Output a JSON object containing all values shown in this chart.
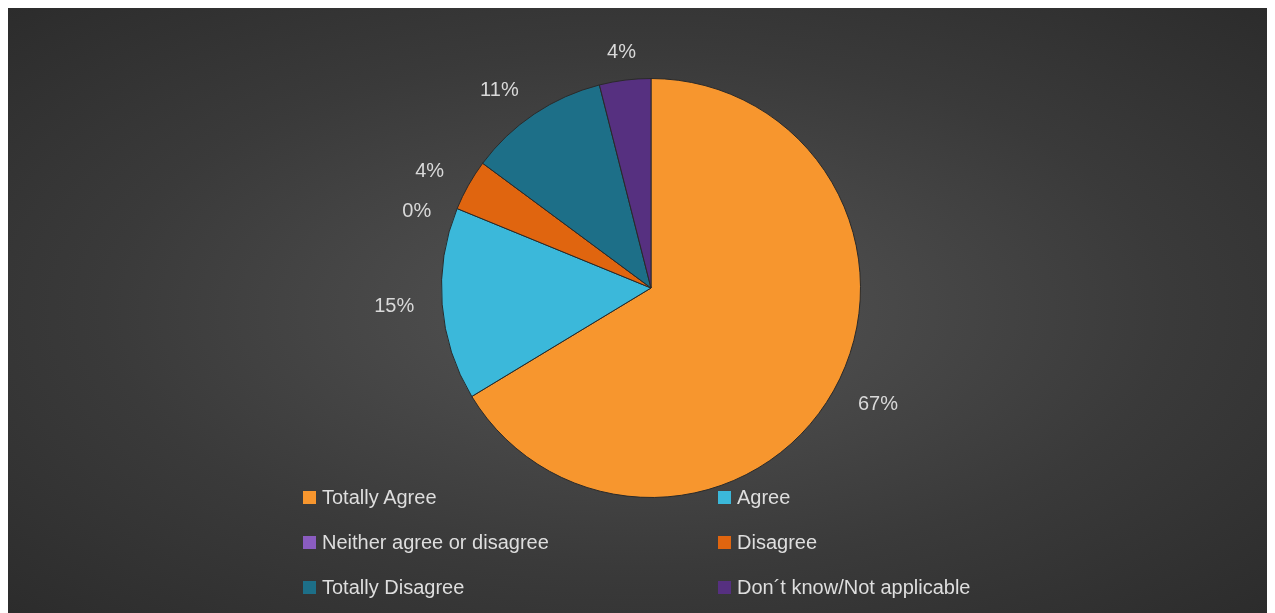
{
  "chart_data": {
    "type": "pie",
    "categories": [
      "Totally Agree",
      "Agree",
      "Neither agree or disagree",
      "Disagree",
      "Totally Disagree",
      "Don´t know/Not applicable"
    ],
    "values": [
      67,
      15,
      0,
      4,
      11,
      4
    ],
    "value_labels": [
      "67%",
      "15%",
      "0%",
      "4%",
      "11%",
      "4%"
    ],
    "colors": [
      "#f7962e",
      "#3bb8da",
      "#8a5cc0",
      "#e0650f",
      "#1d6f88",
      "#563080"
    ],
    "legend": "bottom"
  }
}
